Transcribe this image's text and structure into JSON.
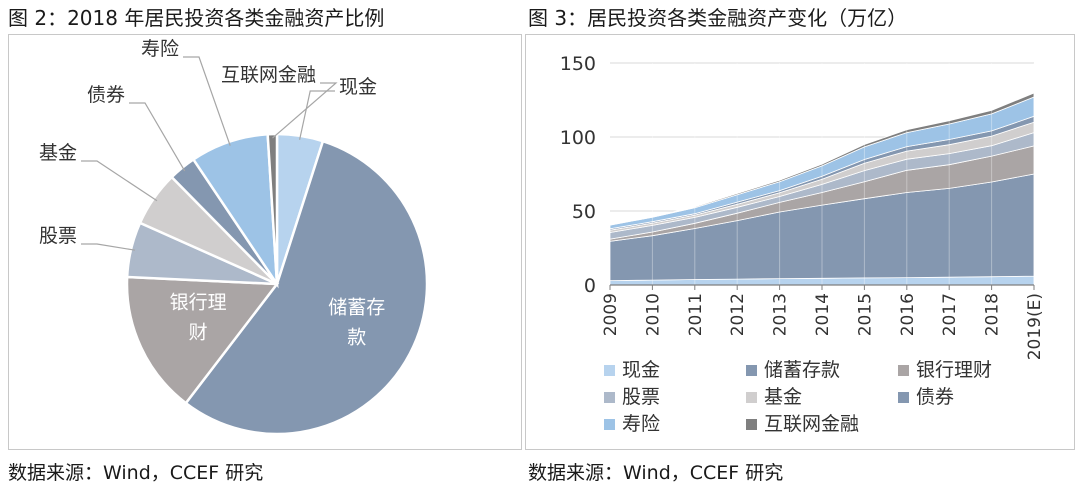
{
  "figures": {
    "left_title": "图 2：2018 年居民投资各类金融资产比例",
    "right_title": "图 3：居民投资各类金融资产变化（万亿）",
    "left_source": "数据来源：Wind，CCEF 研究",
    "right_source": "数据来源：Wind，CCEF 研究"
  },
  "chart_data": [
    {
      "type": "pie",
      "title": "图 2：2018 年居民投资各类金融资产比例",
      "categories": [
        "现金",
        "储蓄存款",
        "银行理财",
        "股票",
        "基金",
        "债券",
        "寿险",
        "互联网金融"
      ],
      "values": [
        5.0,
        56.0,
        15.5,
        6.0,
        6.0,
        3.0,
        8.5,
        1.0
      ],
      "colors": [
        "#b7d3ee",
        "#8497b0",
        "#aaa5a5",
        "#adb9ca",
        "#d0cece",
        "#8497b0",
        "#9dc3e6",
        "#7f7f7f"
      ],
      "inner_labels": {
        "储蓄存款": [
          "储蓄存",
          "款"
        ],
        "银行理财": [
          "银行理",
          "财"
        ]
      }
    },
    {
      "type": "area",
      "stacked": true,
      "title": "图 3：居民投资各类金融资产变化（万亿）",
      "x": [
        "2009",
        "2010",
        "2011",
        "2012",
        "2013",
        "2014",
        "2015",
        "2016",
        "2017",
        "2018",
        "2019(E)"
      ],
      "ylim": [
        0,
        150
      ],
      "yticks": [
        0,
        50,
        100,
        150
      ],
      "grid": "horizontal",
      "legend_position": "bottom",
      "series": [
        {
          "name": "现金",
          "color": "#b7d3ee",
          "values": [
            3.0,
            3.3,
            3.7,
            4.0,
            4.3,
            4.5,
            4.8,
            5.0,
            5.3,
            5.6,
            6.0
          ]
        },
        {
          "name": "储蓄存款",
          "color": "#8497b0",
          "values": [
            26.5,
            30.0,
            34.5,
            39.5,
            45.0,
            49.5,
            53.5,
            57.5,
            60.0,
            64.0,
            69.0
          ]
        },
        {
          "name": "银行理财",
          "color": "#aaa5a5",
          "values": [
            1.5,
            2.5,
            3.5,
            5.0,
            6.5,
            8.5,
            11.5,
            15.0,
            16.0,
            17.5,
            19.0
          ]
        },
        {
          "name": "股票",
          "color": "#adb9ca",
          "values": [
            4.5,
            4.5,
            4.0,
            4.0,
            4.0,
            5.5,
            7.5,
            7.5,
            7.5,
            7.0,
            9.0
          ]
        },
        {
          "name": "基金",
          "color": "#d0cece",
          "values": [
            1.5,
            1.5,
            1.5,
            2.0,
            2.5,
            3.5,
            5.0,
            5.5,
            6.0,
            6.5,
            7.0
          ]
        },
        {
          "name": "债券",
          "color": "#8497b0",
          "values": [
            1.0,
            1.0,
            1.0,
            1.5,
            1.5,
            2.0,
            2.5,
            3.0,
            3.5,
            3.5,
            4.0
          ]
        },
        {
          "name": "寿险",
          "color": "#9dc3e6",
          "values": [
            2.5,
            3.0,
            4.0,
            5.0,
            6.0,
            7.0,
            8.5,
            9.5,
            10.5,
            11.5,
            13.0
          ]
        },
        {
          "name": "互联网金融",
          "color": "#7f7f7f",
          "values": [
            0.5,
            0.5,
            0.6,
            0.8,
            1.0,
            1.2,
            1.6,
            1.9,
            2.2,
            2.4,
            2.7
          ]
        }
      ]
    }
  ]
}
